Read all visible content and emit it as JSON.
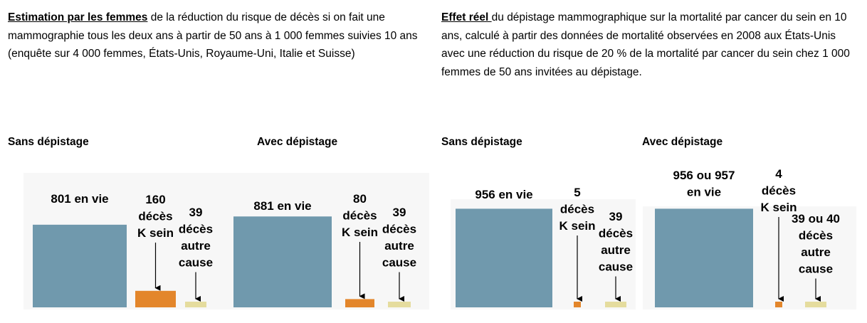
{
  "intro": {
    "left": {
      "lead": "Estimation par les femmes",
      "text": " de la réduction du risque de décès si on fait une mammographie tous les deux ans à partir de 50 ans à 1 000 femmes suivies 10 ans (enquête sur 4 000 femmes, États-Unis, Royaume-Uni, Italie et Suisse)"
    },
    "right": {
      "lead": "Effet réel ",
      "text": "du dépistage mammographique sur la mortalité par cancer du sein en 10 ans, calculé à partir des données de mortalité observées en 2008 aux États-Unis avec une réduction du risque de 20 % de la mortalité par cancer du sein chez 1 000 femmes de 50 ans invitées au dépistage."
    }
  },
  "titles": [
    "Sans dépistage",
    "Avec dépistage",
    "Sans dépistage",
    "Avec dépistage"
  ],
  "colors": {
    "alive": "#7099ad",
    "breast_cancer": "#e3862b",
    "other_cause": "#e5dc9e",
    "panel_bg": "#f7f7f7"
  },
  "chart_data": [
    {
      "type": "bar",
      "title": "Sans dépistage",
      "categories": [
        "en vie",
        "décès K sein",
        "décès autre cause"
      ],
      "values": [
        801,
        160,
        39
      ],
      "labels": [
        [
          "801 en vie"
        ],
        [
          "160",
          "décès",
          "K sein"
        ],
        [
          "39",
          "décès",
          "autre",
          "cause"
        ]
      ]
    },
    {
      "type": "bar",
      "title": "Avec dépistage",
      "categories": [
        "en vie",
        "décès K sein",
        "décès autre cause"
      ],
      "values": [
        881,
        80,
        39
      ],
      "labels": [
        [
          "881 en vie"
        ],
        [
          "80",
          "décès",
          "K sein"
        ],
        [
          "39",
          "décès",
          "autre",
          "cause"
        ]
      ]
    },
    {
      "type": "bar",
      "title": "Sans dépistage",
      "categories": [
        "en vie",
        "décès K sein",
        "décès autre cause"
      ],
      "values": [
        956,
        5,
        39
      ],
      "labels": [
        [
          "956 en vie"
        ],
        [
          "5",
          "décès",
          "K sein"
        ],
        [
          "39",
          "décès",
          "autre",
          "cause"
        ]
      ]
    },
    {
      "type": "bar",
      "title": "Avec dépistage",
      "categories": [
        "en vie",
        "décès K sein",
        "décès autre cause"
      ],
      "values": [
        956,
        4,
        39
      ],
      "labels": [
        [
          "956 ou 957",
          "en vie"
        ],
        [
          "4",
          "décès",
          "K sein"
        ],
        [
          "39 ou 40",
          "décès",
          "autre",
          "cause"
        ]
      ]
    }
  ]
}
